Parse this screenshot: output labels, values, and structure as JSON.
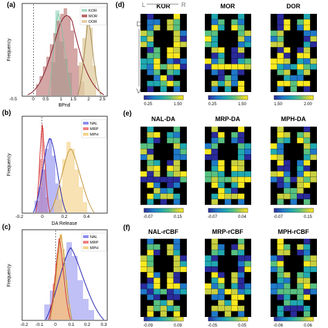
{
  "figure": {
    "panel_labels": [
      "(a)",
      "(b)",
      "(c)",
      "(d)",
      "(e)",
      "(f)"
    ],
    "histograms": [
      {
        "panel": "a",
        "xlabel": "BPnd",
        "ylabel": "Frequency",
        "xticks": [
          "-0.5",
          "0",
          "0.5",
          "1",
          "1.5",
          "2",
          "2.5"
        ],
        "legend": [
          {
            "label": "KOR",
            "color": "#a8dcc8"
          },
          {
            "label": "MOR",
            "color": "#b86a6a"
          },
          {
            "label": "DOR",
            "color": "#e2cfa6"
          }
        ]
      },
      {
        "panel": "b",
        "xlabel": "DA Release",
        "ylabel": "Frequency",
        "xticks": [
          "-0.2",
          "0",
          "0.2",
          "0.4"
        ],
        "legend": [
          {
            "label": "NAL",
            "color": "#8c8cf0"
          },
          {
            "label": "MRP",
            "color": "#f08080"
          },
          {
            "label": "MPH",
            "color": "#f4d28a"
          }
        ]
      },
      {
        "panel": "c",
        "xlabel": "",
        "ylabel": "Frequency",
        "xticks": [
          "-0.2",
          "-0.1",
          "0",
          "0.1",
          "0.2",
          "0.3"
        ],
        "legend": [
          {
            "label": "NAL",
            "color": "#8c8cf0"
          },
          {
            "label": "MRP",
            "color": "#f08080"
          },
          {
            "label": "MPH",
            "color": "#f4d28a"
          }
        ]
      }
    ],
    "map_rows": [
      {
        "panel": "d",
        "titles": [
          "KOR",
          "MOR",
          "DOR"
        ],
        "colorbars": [
          [
            "0.25",
            "1.50"
          ],
          [
            "0.25",
            "1.50"
          ],
          [
            "1.50",
            "2.00"
          ]
        ],
        "orientation": {
          "left": "L",
          "right": "R",
          "dorsal": "D",
          "ventral": "V"
        }
      },
      {
        "panel": "e",
        "titles": [
          "NAL-DA",
          "MRP-DA",
          "MPH-DA"
        ],
        "colorbars": [
          [
            "-0.07",
            "0.15"
          ],
          [
            "-0.07",
            "0.04"
          ],
          [
            "-0.07",
            "0.15"
          ]
        ]
      },
      {
        "panel": "f",
        "titles": [
          "NAL-rCBF",
          "MRP-rCBF",
          "MPH-rCBF"
        ],
        "colorbars": [
          [
            "-0.09",
            "0.09"
          ],
          [
            "-0.05",
            "0.05"
          ],
          [
            "-0.06",
            "0.06"
          ]
        ]
      }
    ],
    "colormap": [
      "#2a2a9a",
      "#1f78c8",
      "#20a8b0",
      "#58c080",
      "#c8d040",
      "#f8e820"
    ]
  }
}
